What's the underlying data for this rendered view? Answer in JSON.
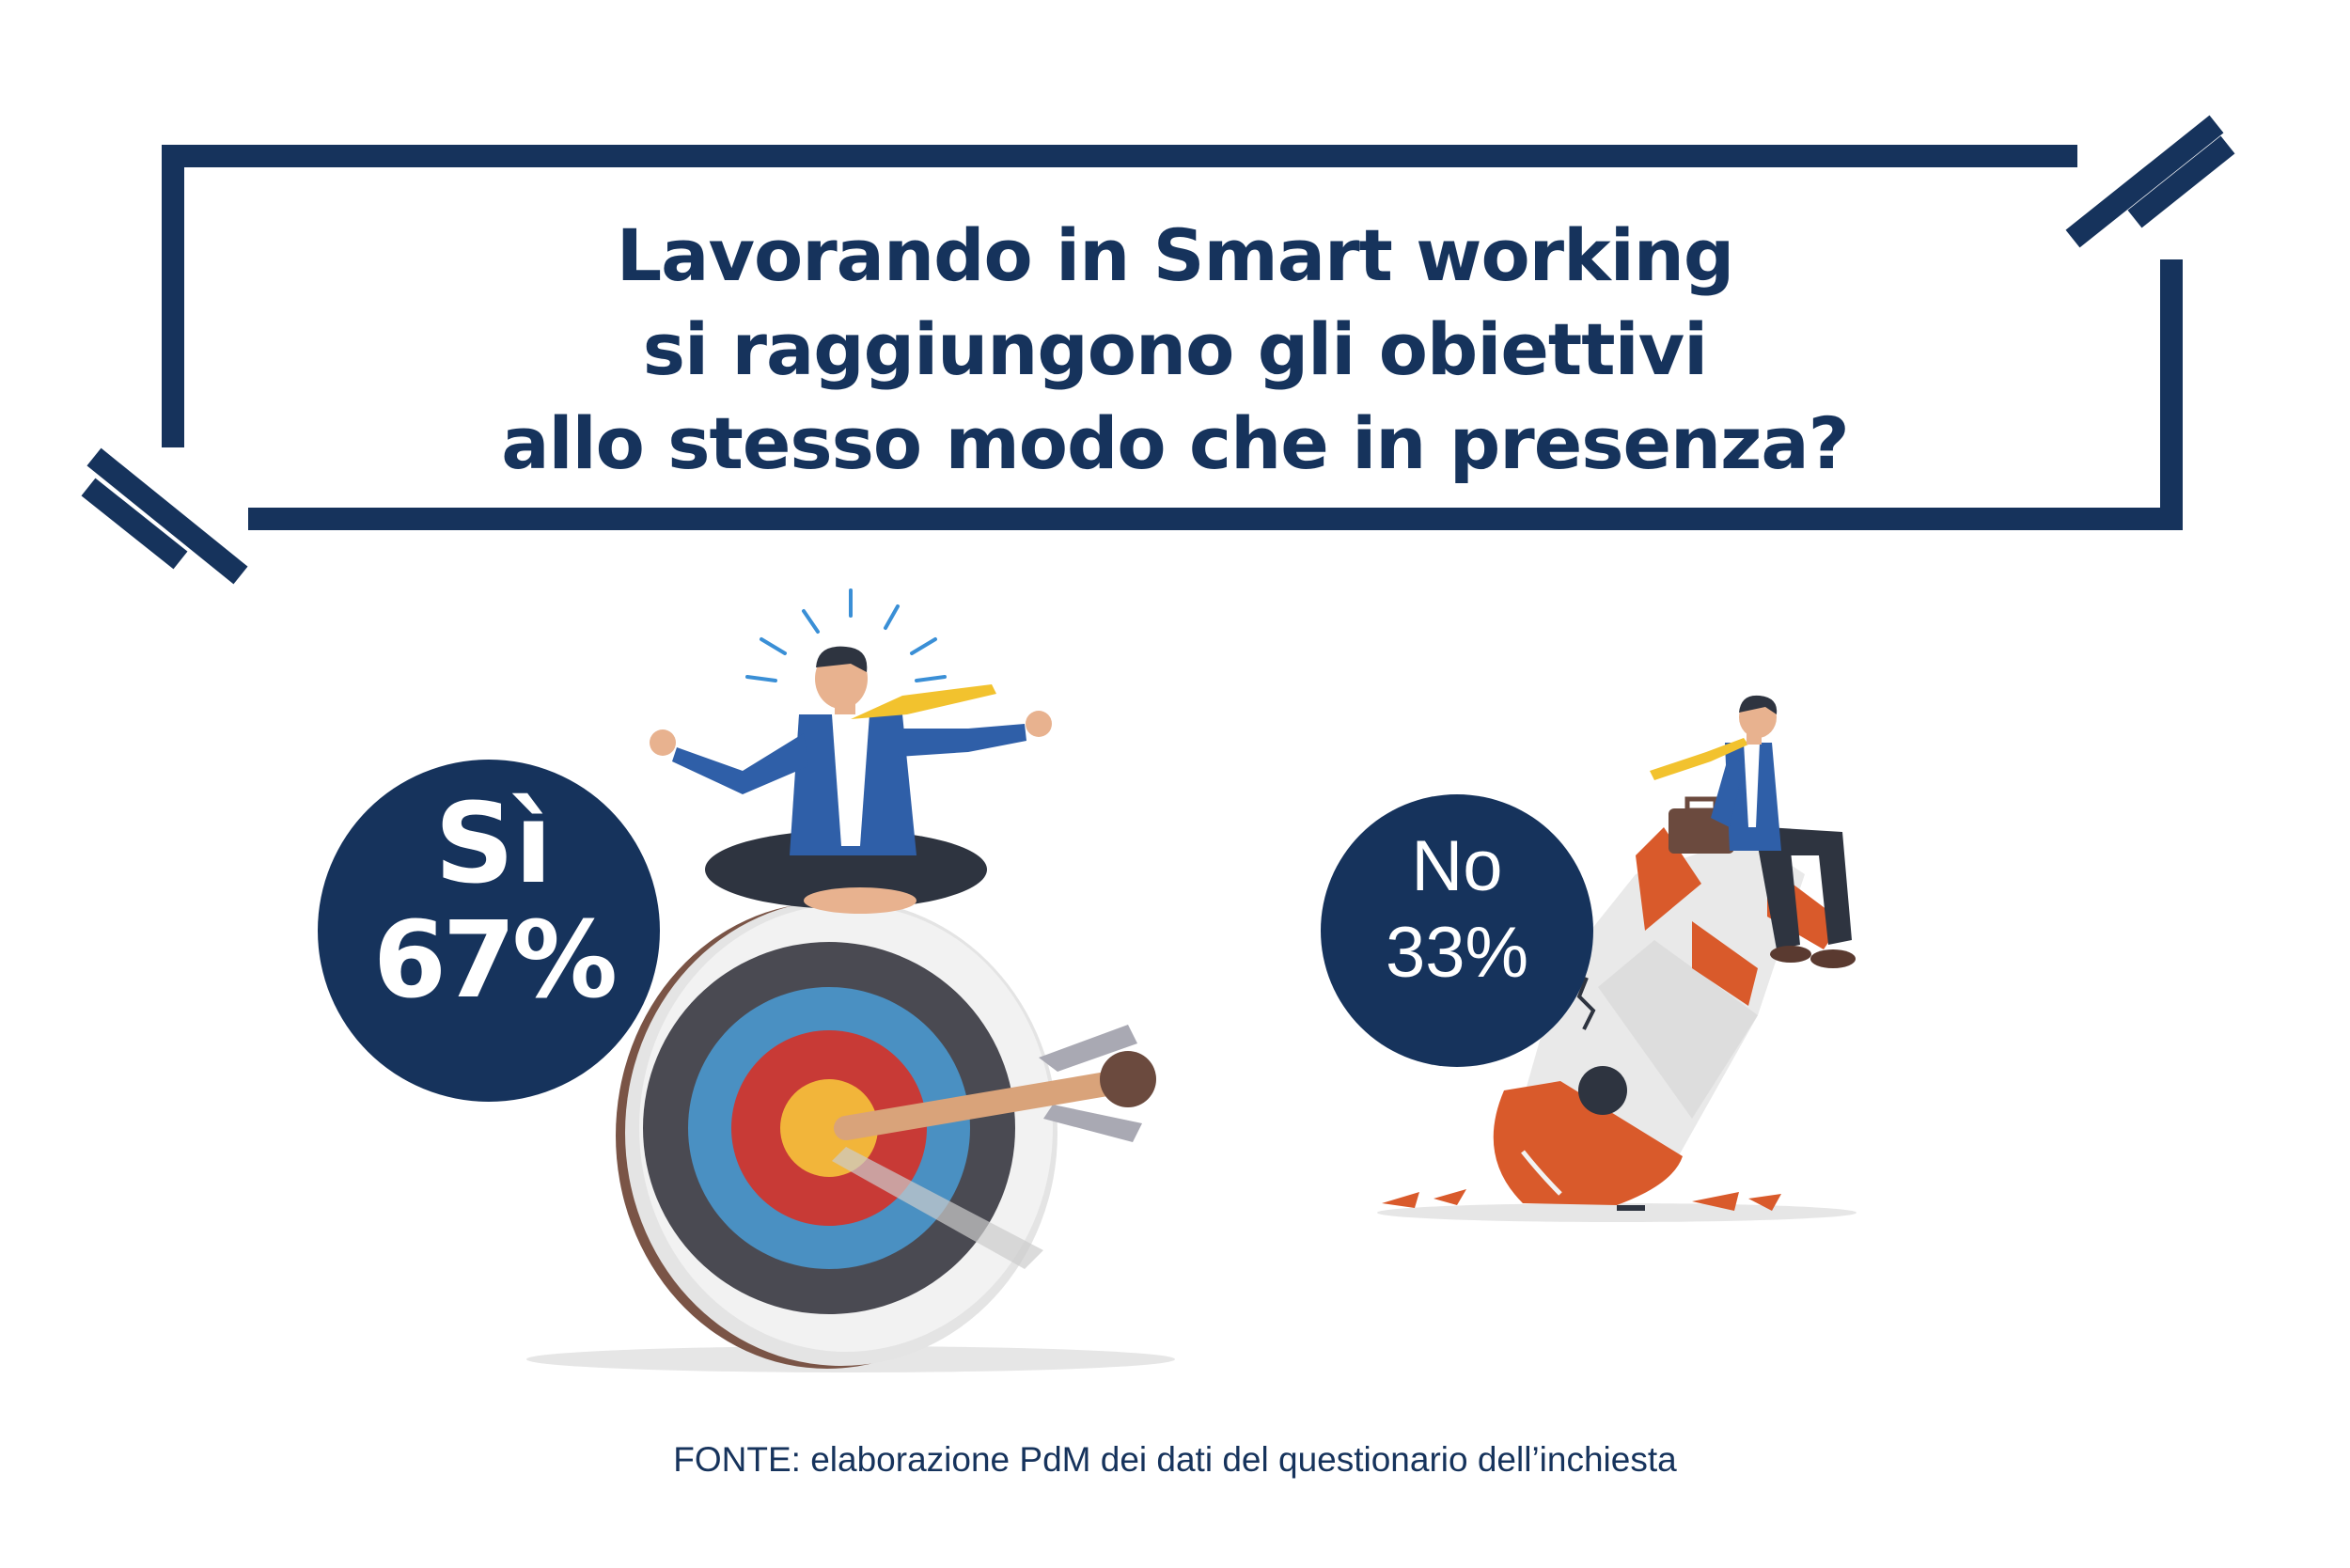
{
  "title": {
    "line1": "Lavorando in Smart working",
    "line2": "si raggiungono gli obiettivi",
    "line3": "allo stesso modo che in presenza?"
  },
  "results": {
    "yes": {
      "label": "Sì",
      "value": "67%"
    },
    "no": {
      "label": "No",
      "value": "33%"
    }
  },
  "source": "FONTE: elaborazione PdM dei dati del questionario dell’inchiesta",
  "colors": {
    "navy": "#16335c",
    "target_outer": "#4a4a52",
    "target_blue": "#4a90c2",
    "target_red": "#c83a36",
    "target_yellow": "#f2b53a",
    "rocket_orange": "#d95a2b",
    "tie_yellow": "#f2c22e"
  },
  "icons": [
    "meditating-businessman-icon",
    "archery-target-icon",
    "arrow-icon",
    "crashed-rocket-icon",
    "sitting-businessman-icon"
  ]
}
